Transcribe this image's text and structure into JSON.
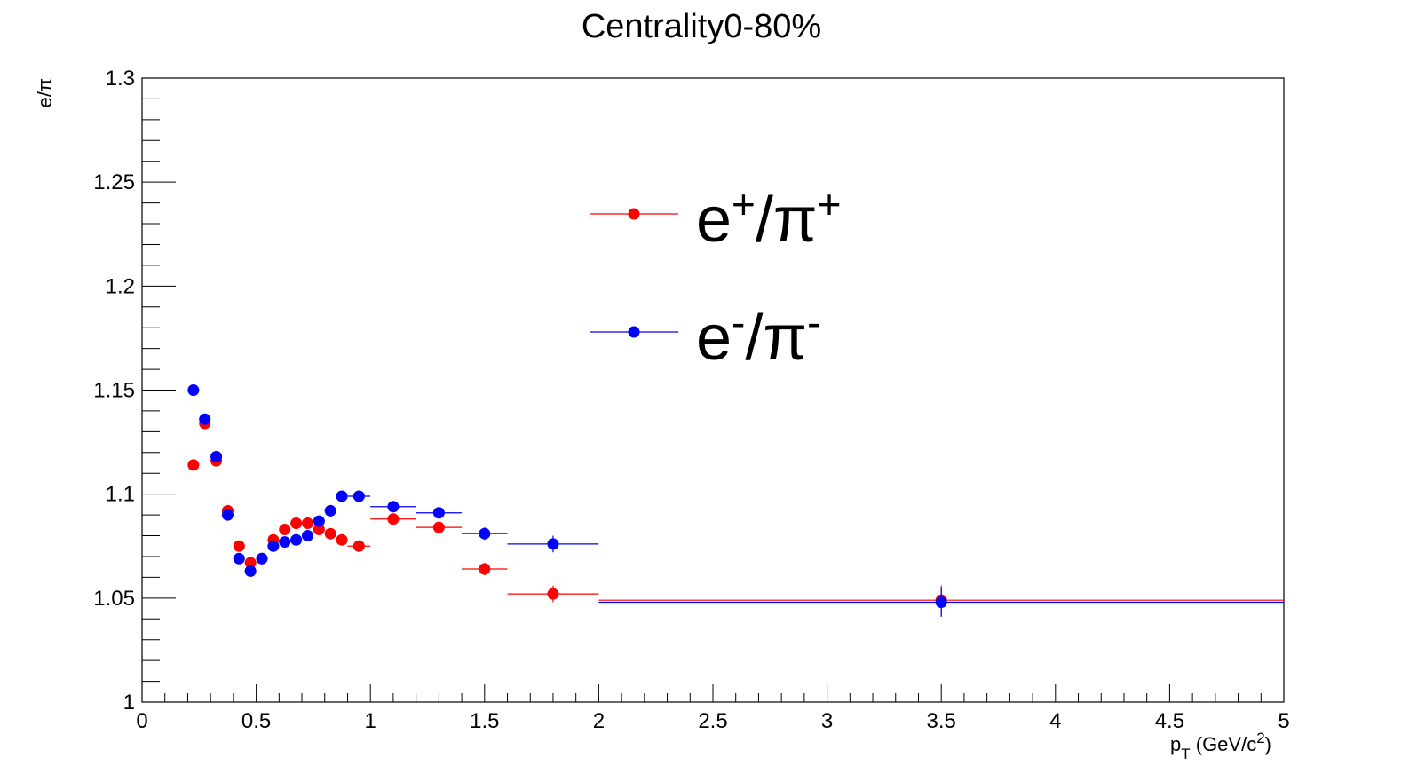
{
  "chart_data": {
    "type": "scatter",
    "title": "Centrality0-80%",
    "ylabel": "e/π",
    "xlabel": {
      "base": "p",
      "sub": "T",
      "unit_pre": " (GeV/c",
      "unit_sup": "2",
      "unit_post": ")"
    },
    "xlim": [
      0,
      5
    ],
    "ylim": [
      1.0,
      1.3
    ],
    "xticks": [
      0,
      0.5,
      1,
      1.5,
      2,
      2.5,
      3,
      3.5,
      4,
      4.5,
      5
    ],
    "xtick_labels": [
      "0",
      "0.5",
      "1",
      "1.5",
      "2",
      "2.5",
      "3",
      "3.5",
      "4",
      "4.5",
      "5"
    ],
    "yticks": [
      1.0,
      1.05,
      1.1,
      1.15,
      1.2,
      1.25,
      1.3
    ],
    "ytick_labels": [
      "1",
      "1.05",
      "1.1",
      "1.15",
      "1.2",
      "1.25",
      "1.3"
    ],
    "grid": false,
    "legend": "top-center",
    "series": [
      {
        "name": "e+/π+",
        "legend_base1": "e",
        "legend_sup1": "+",
        "legend_mid": "/π",
        "legend_sup2": "+",
        "color": "#ff0000",
        "x": [
          0.225,
          0.275,
          0.325,
          0.375,
          0.425,
          0.475,
          0.525,
          0.575,
          0.625,
          0.675,
          0.725,
          0.775,
          0.825,
          0.875,
          0.95,
          1.1,
          1.3,
          1.5,
          1.8,
          3.5
        ],
        "xerr": [
          0.025,
          0.025,
          0.025,
          0.025,
          0.025,
          0.025,
          0.025,
          0.025,
          0.025,
          0.025,
          0.025,
          0.025,
          0.025,
          0.025,
          0.05,
          0.1,
          0.1,
          0.1,
          0.2,
          1.5
        ],
        "y": [
          1.114,
          1.134,
          1.116,
          1.092,
          1.075,
          1.067,
          1.069,
          1.078,
          1.083,
          1.086,
          1.086,
          1.083,
          1.081,
          1.078,
          1.075,
          1.088,
          1.084,
          1.064,
          1.052,
          1.049
        ],
        "yerr": [
          0.001,
          0.001,
          0.001,
          0.001,
          0.001,
          0.001,
          0.001,
          0.001,
          0.001,
          0.001,
          0.001,
          0.001,
          0.001,
          0.001,
          0.001,
          0.001,
          0.002,
          0.003,
          0.004,
          0.007
        ]
      },
      {
        "name": "e-/π-",
        "legend_base1": "e",
        "legend_sup1": "-",
        "legend_mid": "/π",
        "legend_sup2": "-",
        "color": "#0000ff",
        "x": [
          0.225,
          0.275,
          0.325,
          0.375,
          0.425,
          0.475,
          0.525,
          0.575,
          0.625,
          0.675,
          0.725,
          0.775,
          0.825,
          0.875,
          0.95,
          1.1,
          1.3,
          1.5,
          1.8,
          3.5
        ],
        "xerr": [
          0.025,
          0.025,
          0.025,
          0.025,
          0.025,
          0.025,
          0.025,
          0.025,
          0.025,
          0.025,
          0.025,
          0.025,
          0.025,
          0.025,
          0.05,
          0.1,
          0.1,
          0.1,
          0.2,
          1.5
        ],
        "y": [
          1.15,
          1.136,
          1.118,
          1.09,
          1.069,
          1.063,
          1.069,
          1.075,
          1.077,
          1.078,
          1.08,
          1.087,
          1.092,
          1.099,
          1.099,
          1.094,
          1.091,
          1.081,
          1.076,
          1.048
        ],
        "yerr": [
          0.001,
          0.001,
          0.001,
          0.001,
          0.001,
          0.001,
          0.001,
          0.001,
          0.001,
          0.001,
          0.001,
          0.001,
          0.001,
          0.001,
          0.001,
          0.001,
          0.002,
          0.003,
          0.004,
          0.007
        ]
      }
    ]
  }
}
